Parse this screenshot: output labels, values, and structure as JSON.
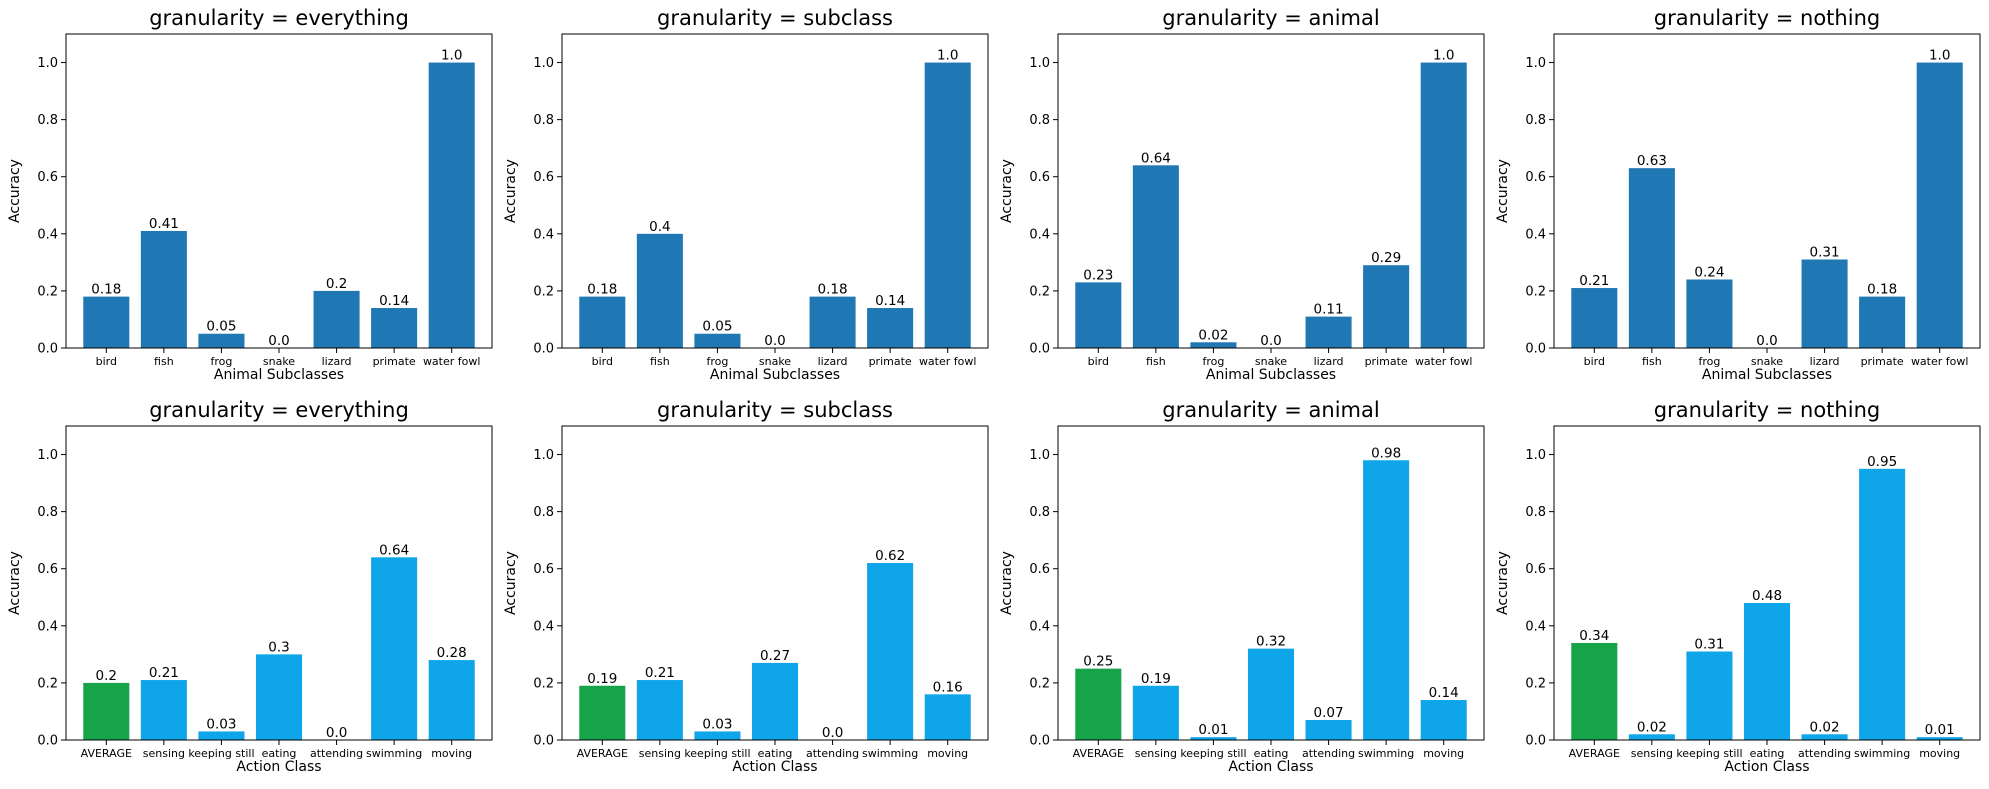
{
  "chart_data": [
    {
      "type": "bar",
      "title": "granularity = everything",
      "xlabel": "Animal Subclasses",
      "ylabel": "Accuracy",
      "ylim": [
        0,
        1.1
      ],
      "yticks": [
        "0.0",
        "0.2",
        "0.4",
        "0.6",
        "0.8",
        "1.0"
      ],
      "categories": [
        "bird",
        "fish",
        "frog",
        "snake",
        "lizard",
        "primate",
        "water fowl"
      ],
      "values": [
        0.18,
        0.41,
        0.05,
        0.0,
        0.2,
        0.14,
        1.0
      ],
      "value_labels": [
        "0.18",
        "0.41",
        "0.05",
        "0.0",
        "0.2",
        "0.14",
        "1.0"
      ],
      "colors": [
        "#1f77b4",
        "#1f77b4",
        "#1f77b4",
        "#1f77b4",
        "#1f77b4",
        "#1f77b4",
        "#1f77b4"
      ]
    },
    {
      "type": "bar",
      "title": "granularity = subclass",
      "xlabel": "Animal Subclasses",
      "ylabel": "Accuracy",
      "ylim": [
        0,
        1.1
      ],
      "yticks": [
        "0.0",
        "0.2",
        "0.4",
        "0.6",
        "0.8",
        "1.0"
      ],
      "categories": [
        "bird",
        "fish",
        "frog",
        "snake",
        "lizard",
        "primate",
        "water fowl"
      ],
      "values": [
        0.18,
        0.4,
        0.05,
        0.0,
        0.18,
        0.14,
        1.0
      ],
      "value_labels": [
        "0.18",
        "0.4",
        "0.05",
        "0.0",
        "0.18",
        "0.14",
        "1.0"
      ],
      "colors": [
        "#1f77b4",
        "#1f77b4",
        "#1f77b4",
        "#1f77b4",
        "#1f77b4",
        "#1f77b4",
        "#1f77b4"
      ]
    },
    {
      "type": "bar",
      "title": "granularity = animal",
      "xlabel": "Animal Subclasses",
      "ylabel": "Accuracy",
      "ylim": [
        0,
        1.1
      ],
      "yticks": [
        "0.0",
        "0.2",
        "0.4",
        "0.6",
        "0.8",
        "1.0"
      ],
      "categories": [
        "bird",
        "fish",
        "frog",
        "snake",
        "lizard",
        "primate",
        "water fowl"
      ],
      "values": [
        0.23,
        0.64,
        0.02,
        0.0,
        0.11,
        0.29,
        1.0
      ],
      "value_labels": [
        "0.23",
        "0.64",
        "0.02",
        "0.0",
        "0.11",
        "0.29",
        "1.0"
      ],
      "colors": [
        "#1f77b4",
        "#1f77b4",
        "#1f77b4",
        "#1f77b4",
        "#1f77b4",
        "#1f77b4",
        "#1f77b4"
      ]
    },
    {
      "type": "bar",
      "title": "granularity = nothing",
      "xlabel": "Animal Subclasses",
      "ylabel": "Accuracy",
      "ylim": [
        0,
        1.1
      ],
      "yticks": [
        "0.0",
        "0.2",
        "0.4",
        "0.6",
        "0.8",
        "1.0"
      ],
      "categories": [
        "bird",
        "fish",
        "frog",
        "snake",
        "lizard",
        "primate",
        "water fowl"
      ],
      "values": [
        0.21,
        0.63,
        0.24,
        0.0,
        0.31,
        0.18,
        1.0
      ],
      "value_labels": [
        "0.21",
        "0.63",
        "0.24",
        "0.0",
        "0.31",
        "0.18",
        "1.0"
      ],
      "colors": [
        "#1f77b4",
        "#1f77b4",
        "#1f77b4",
        "#1f77b4",
        "#1f77b4",
        "#1f77b4",
        "#1f77b4"
      ]
    },
    {
      "type": "bar",
      "title": "granularity = everything",
      "xlabel": "Action Class",
      "ylabel": "Accuracy",
      "ylim": [
        0,
        1.1
      ],
      "yticks": [
        "0.0",
        "0.2",
        "0.4",
        "0.6",
        "0.8",
        "1.0"
      ],
      "categories": [
        "AVERAGE",
        "sensing",
        "keeping still",
        "eating",
        "attending",
        "swimming",
        "moving"
      ],
      "values": [
        0.2,
        0.21,
        0.03,
        0.3,
        0.0,
        0.64,
        0.28
      ],
      "value_labels": [
        "0.2",
        "0.21",
        "0.03",
        "0.3",
        "0.0",
        "0.64",
        "0.28"
      ],
      "colors": [
        "#16a34a",
        "#0ea5e9",
        "#0ea5e9",
        "#0ea5e9",
        "#0ea5e9",
        "#0ea5e9",
        "#0ea5e9"
      ]
    },
    {
      "type": "bar",
      "title": "granularity = subclass",
      "xlabel": "Action Class",
      "ylabel": "Accuracy",
      "ylim": [
        0,
        1.1
      ],
      "yticks": [
        "0.0",
        "0.2",
        "0.4",
        "0.6",
        "0.8",
        "1.0"
      ],
      "categories": [
        "AVERAGE",
        "sensing",
        "keeping still",
        "eating",
        "attending",
        "swimming",
        "moving"
      ],
      "values": [
        0.19,
        0.21,
        0.03,
        0.27,
        0.0,
        0.62,
        0.16
      ],
      "value_labels": [
        "0.19",
        "0.21",
        "0.03",
        "0.27",
        "0.0",
        "0.62",
        "0.16"
      ],
      "colors": [
        "#16a34a",
        "#0ea5e9",
        "#0ea5e9",
        "#0ea5e9",
        "#0ea5e9",
        "#0ea5e9",
        "#0ea5e9"
      ]
    },
    {
      "type": "bar",
      "title": "granularity = animal",
      "xlabel": "Action Class",
      "ylabel": "Accuracy",
      "ylim": [
        0,
        1.1
      ],
      "yticks": [
        "0.0",
        "0.2",
        "0.4",
        "0.6",
        "0.8",
        "1.0"
      ],
      "categories": [
        "AVERAGE",
        "sensing",
        "keeping still",
        "eating",
        "attending",
        "swimming",
        "moving"
      ],
      "values": [
        0.25,
        0.19,
        0.01,
        0.32,
        0.07,
        0.98,
        0.14
      ],
      "value_labels": [
        "0.25",
        "0.19",
        "0.01",
        "0.32",
        "0.07",
        "0.98",
        "0.14"
      ],
      "colors": [
        "#16a34a",
        "#0ea5e9",
        "#0ea5e9",
        "#0ea5e9",
        "#0ea5e9",
        "#0ea5e9",
        "#0ea5e9"
      ]
    },
    {
      "type": "bar",
      "title": "granularity = nothing",
      "xlabel": "Action Class",
      "ylabel": "Accuracy",
      "ylim": [
        0,
        1.1
      ],
      "yticks": [
        "0.0",
        "0.2",
        "0.4",
        "0.6",
        "0.8",
        "1.0"
      ],
      "categories": [
        "AVERAGE",
        "sensing",
        "keeping still",
        "eating",
        "attending",
        "swimming",
        "moving"
      ],
      "values": [
        0.34,
        0.02,
        0.31,
        0.48,
        0.02,
        0.95,
        0.01
      ],
      "value_labels": [
        "0.34",
        "0.02",
        "0.31",
        "0.48",
        "0.02",
        "0.95",
        "0.01"
      ],
      "colors": [
        "#16a34a",
        "#0ea5e9",
        "#0ea5e9",
        "#0ea5e9",
        "#0ea5e9",
        "#0ea5e9",
        "#0ea5e9"
      ]
    }
  ]
}
